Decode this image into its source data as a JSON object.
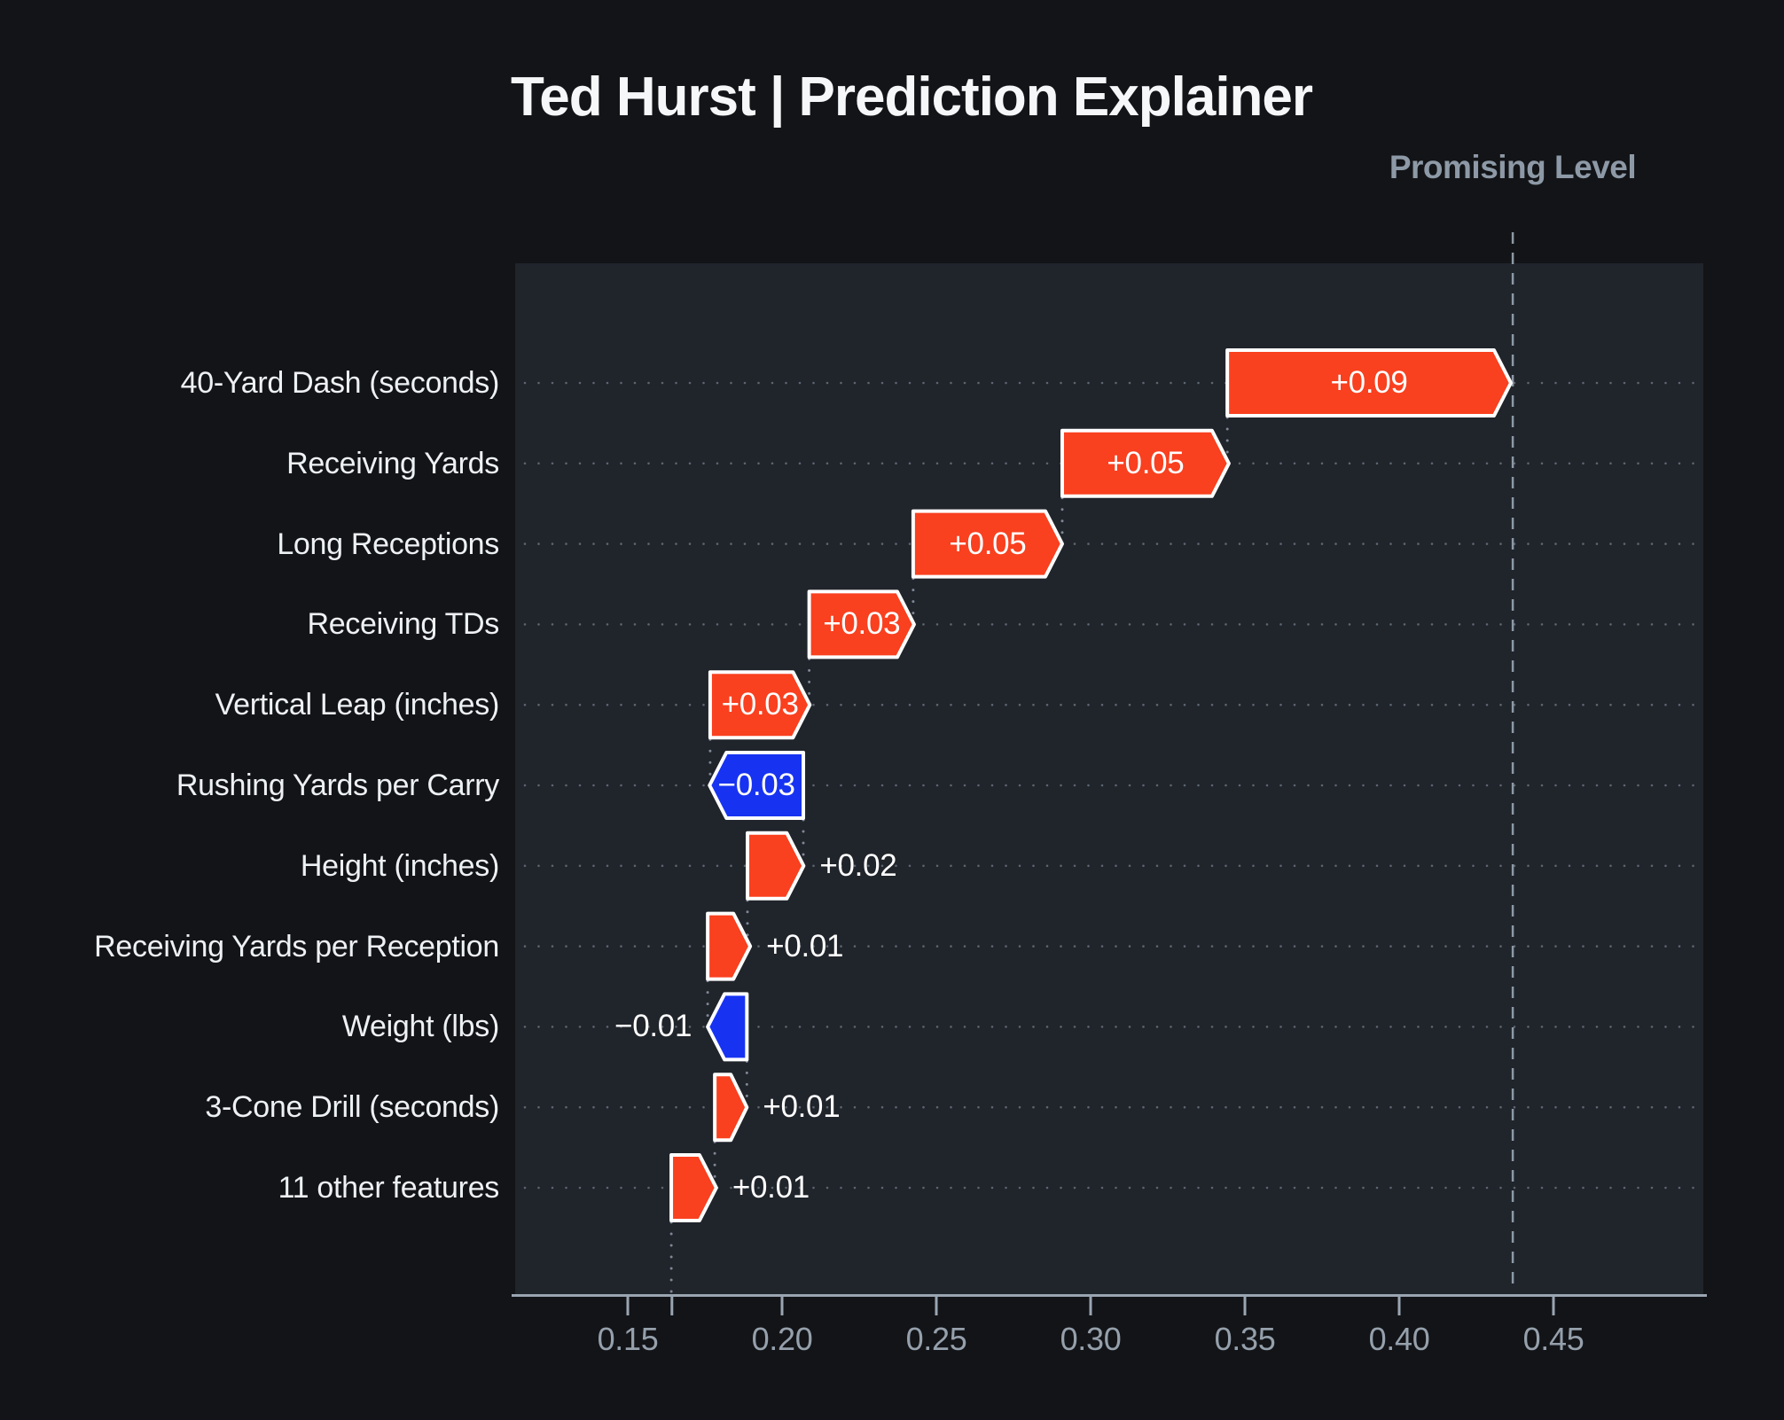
{
  "title": "Ted Hurst | Prediction Explainer",
  "chart_data": {
    "type": "waterfall",
    "title": "Ted Hurst | Prediction Explainer",
    "reference_line": {
      "label": "Promising Level",
      "value": 0.4368
    },
    "base_value": 0.1643,
    "final_value": 0.4368,
    "x_range": [
      0.1135,
      0.4985
    ],
    "grid": "dotted horizontal line per row",
    "legend": "none",
    "x_ticks": [
      {
        "label": "0.15",
        "value": 0.15
      },
      {
        "label": "0.20",
        "value": 0.2
      },
      {
        "label": "0.25",
        "value": 0.25
      },
      {
        "label": "0.30",
        "value": 0.3
      },
      {
        "label": "0.35",
        "value": 0.35
      },
      {
        "label": "0.40",
        "value": 0.4
      },
      {
        "label": "0.45",
        "value": 0.45
      }
    ],
    "features": [
      {
        "name": "40-Yard Dash (seconds)",
        "label": "+0.09",
        "value": 0.09,
        "start": 0.3443,
        "end": 0.4362,
        "label_pos": "inside"
      },
      {
        "name": "Receiving Yards",
        "label": "+0.05",
        "value": 0.05,
        "start": 0.2908,
        "end": 0.3448,
        "label_pos": "inside"
      },
      {
        "name": "Long Receptions",
        "label": "+0.05",
        "value": 0.05,
        "start": 0.2425,
        "end": 0.2908,
        "label_pos": "inside"
      },
      {
        "name": "Receiving TDs",
        "label": "+0.03",
        "value": 0.03,
        "start": 0.2088,
        "end": 0.2428,
        "label_pos": "inside"
      },
      {
        "name": "Vertical Leap (inches)",
        "label": "+0.03",
        "value": 0.03,
        "start": 0.1767,
        "end": 0.209,
        "label_pos": "inside"
      },
      {
        "name": "Rushing Yards per Carry",
        "label": "−0.03",
        "value": -0.03,
        "start": 0.2069,
        "end": 0.1765,
        "label_pos": "inside"
      },
      {
        "name": "Height (inches)",
        "label": "+0.02",
        "value": 0.02,
        "start": 0.1888,
        "end": 0.207,
        "label_pos": "right"
      },
      {
        "name": "Receiving Yards per Reception",
        "label": "+0.01",
        "value": 0.01,
        "start": 0.1759,
        "end": 0.1897,
        "label_pos": "right"
      },
      {
        "name": "Weight (lbs)",
        "label": "−0.01",
        "value": -0.01,
        "start": 0.1886,
        "end": 0.1759,
        "label_pos": "left"
      },
      {
        "name": "3-Cone Drill (seconds)",
        "label": "+0.01",
        "value": 0.01,
        "start": 0.1782,
        "end": 0.1886,
        "label_pos": "right"
      },
      {
        "name": "11 other features",
        "label": "+0.01",
        "value": 0.01,
        "start": 0.1641,
        "end": 0.1787,
        "label_pos": "right"
      }
    ],
    "colors": {
      "positive": "#f9401f",
      "negative": "#1733f1",
      "bar_stroke": "#ffffff",
      "axis": "#9aa5b2",
      "tick_label": "#95a0ac",
      "grid_dot": "#5d656f",
      "connector_dot": "#7e8794",
      "reference": "#8d99a6",
      "feature_label": "#eef1f4",
      "value_label": "#ffffff",
      "title": "#f5f7f9",
      "page_bg": "#131417",
      "panel_bg": "#20242b"
    }
  }
}
